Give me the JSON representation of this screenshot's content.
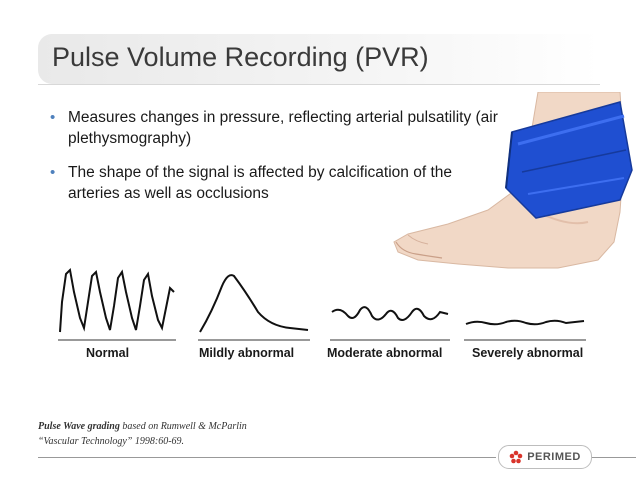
{
  "slide": {
    "title": "Pulse Volume Recording (PVR)",
    "bullets": [
      "Measures changes in pressure, reflecting arterial pulsatility (air plethysmography)",
      "The shape of the signal is affected by calcification of the arteries as well as occlusions"
    ],
    "bullet_glyph": "•",
    "accent_color": "#4f81bd",
    "waveforms": [
      {
        "label": "Normal"
      },
      {
        "label": "Mildly abnormal"
      },
      {
        "label": "Moderate abnormal"
      },
      {
        "label": "Severely abnormal"
      }
    ],
    "citation": {
      "line1_bold": "Pulse Wave grading",
      "line1_rest": " based on Rumwell & McParlin",
      "line2": "“Vascular Technology” 1998:60-69."
    },
    "logo": {
      "text": "PERIMED",
      "color": "#d9342b"
    }
  }
}
